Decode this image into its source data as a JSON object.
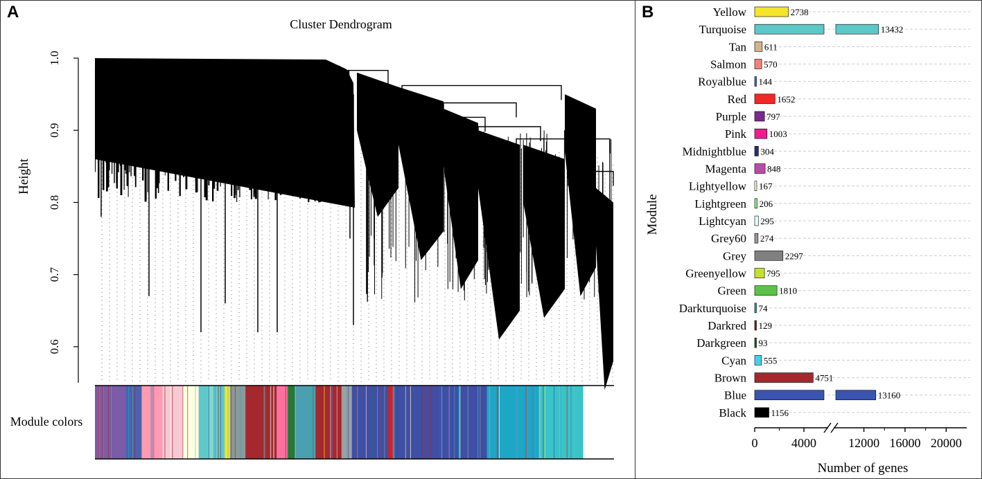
{
  "panels": {
    "a": "A",
    "b": "B"
  },
  "dendrogram": {
    "title": "Cluster Dendrogram",
    "ylabel": "Height",
    "yticks": [
      "0.6",
      "0.7",
      "0.8",
      "0.9",
      "1.0"
    ],
    "ytick_values": [
      0.6,
      0.7,
      0.8,
      0.9,
      1.0
    ],
    "ylim": [
      0.55,
      1.0
    ],
    "module_colors_label": "Module colors",
    "color_bands": [
      {
        "color": "#7a5ca8",
        "frac": 0.06
      },
      {
        "color": "#4a63b0",
        "frac": 0.03
      },
      {
        "color": "#ff9ab0",
        "frac": 0.04
      },
      {
        "color": "#f7c9d4",
        "frac": 0.04
      },
      {
        "color": "#ffffe0",
        "frac": 0.03
      },
      {
        "color": "#5fc9c9",
        "frac": 0.05
      },
      {
        "color": "#f5e52a",
        "frac": 0.01
      },
      {
        "color": "#8a9a9a",
        "frac": 0.03
      },
      {
        "color": "#a4282d",
        "frac": 0.06
      },
      {
        "color": "#ff6fa0",
        "frac": 0.02
      },
      {
        "color": "#237a34",
        "frac": 0.015
      },
      {
        "color": "#4aa0b0",
        "frac": 0.04
      },
      {
        "color": "#a4282d",
        "frac": 0.05
      },
      {
        "color": "#a0a0a0",
        "frac": 0.02
      },
      {
        "color": "#3e4fa5",
        "frac": 0.07
      },
      {
        "color": "#c7252a",
        "frac": 0.01
      },
      {
        "color": "#3e4fa5",
        "frac": 0.18
      },
      {
        "color": "#1ea6c6",
        "frac": 0.1
      },
      {
        "color": "#38c4c8",
        "frac": 0.085
      }
    ]
  },
  "chart_data": {
    "type": "bar",
    "orientation": "horizontal",
    "ylabel": "Module",
    "xlabel": "Number of genes",
    "x_ticks": [
      0,
      4000,
      12000,
      16000,
      20000
    ],
    "x_tick_labels": [
      "0",
      "4000",
      "12000",
      "16000",
      "20000"
    ],
    "axis_break": [
      5800,
      9200
    ],
    "xlim": [
      0,
      22000
    ],
    "bars": [
      {
        "name": "Yellow",
        "value": 2738,
        "label": "2738",
        "color": "#f5e52a"
      },
      {
        "name": "Turquoise",
        "value": 13432,
        "label": "13432",
        "color": "#5cc8c8"
      },
      {
        "name": "Tan",
        "value": 611,
        "label": "611",
        "color": "#d2b48c"
      },
      {
        "name": "Salmon",
        "value": 570,
        "label": "570",
        "color": "#f2827a"
      },
      {
        "name": "Royalblue",
        "value": 144,
        "label": "144",
        "color": "#4169e1"
      },
      {
        "name": "Red",
        "value": 1652,
        "label": "1652",
        "color": "#f02828"
      },
      {
        "name": "Purple",
        "value": 797,
        "label": "797",
        "color": "#7a2a8a"
      },
      {
        "name": "Pink",
        "value": 1003,
        "label": "1003",
        "color": "#ee1c8c"
      },
      {
        "name": "Midnightblue",
        "value": 304,
        "label": "304",
        "color": "#27306a"
      },
      {
        "name": "Magenta",
        "value": 848,
        "label": "848",
        "color": "#b84da8"
      },
      {
        "name": "Lightyellow",
        "value": 167,
        "label": "167",
        "color": "#fffbd8"
      },
      {
        "name": "Lightgreen",
        "value": 206,
        "label": "206",
        "color": "#98e698"
      },
      {
        "name": "Lightcyan",
        "value": 295,
        "label": "295",
        "color": "#e0ffff"
      },
      {
        "name": "Grey60",
        "value": 274,
        "label": "274",
        "color": "#999999"
      },
      {
        "name": "Grey",
        "value": 2297,
        "label": "2297",
        "color": "#808080"
      },
      {
        "name": "Greenyellow",
        "value": 795,
        "label": "795",
        "color": "#c4e02a"
      },
      {
        "name": "Green",
        "value": 1810,
        "label": "1810",
        "color": "#5ec24a"
      },
      {
        "name": "Darkturquoise",
        "value": 74,
        "label": "74",
        "color": "#1aa0a8"
      },
      {
        "name": "Darkred",
        "value": 129,
        "label": "129",
        "color": "#8b1a1a"
      },
      {
        "name": "Darkgreen",
        "value": 93,
        "label": "93",
        "color": "#1a5a2a"
      },
      {
        "name": "Cyan",
        "value": 555,
        "label": "555",
        "color": "#4ad0e6"
      },
      {
        "name": "Brown",
        "value": 4751,
        "label": "4751",
        "color": "#a5282d"
      },
      {
        "name": "Blue",
        "value": 13160,
        "label": "13160",
        "color": "#3b54b0"
      },
      {
        "name": "Black",
        "value": 1156,
        "label": "1156",
        "color": "#000000"
      }
    ]
  }
}
